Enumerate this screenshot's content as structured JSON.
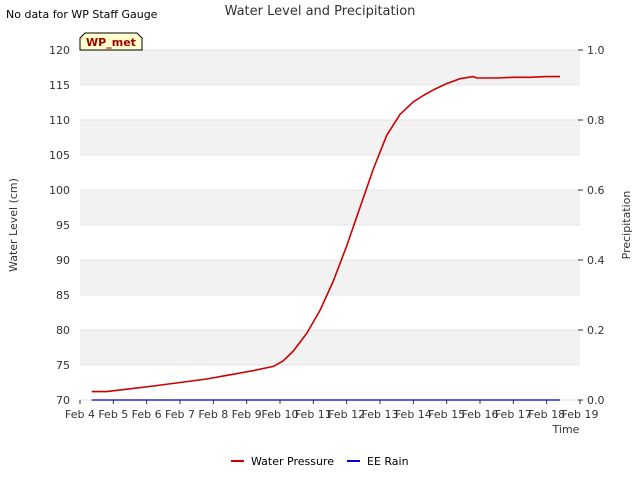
{
  "header": {
    "title": "Water Level and Precipitation",
    "no_data_note": "No data for WP Staff Gauge",
    "station_badge": "WP_met"
  },
  "chart_data": {
    "type": "line",
    "title": "Water Level and Precipitation",
    "xlabel": "Time",
    "ylabel": "Water Level (cm)",
    "y2label": "Precipitation",
    "x_ticks": [
      "Feb 4",
      "Feb 5",
      "Feb 6",
      "Feb 7",
      "Feb 8",
      "Feb 9",
      "Feb 10",
      "Feb 11",
      "Feb 12",
      "Feb 13",
      "Feb 14",
      "Feb 15",
      "Feb 16",
      "Feb 17",
      "Feb 18",
      "Feb 19"
    ],
    "xlim": [
      4,
      19
    ],
    "ylim": [
      70,
      120
    ],
    "y_ticks": [
      "70",
      "75",
      "80",
      "85",
      "90",
      "95",
      "100",
      "105",
      "110",
      "115",
      "120"
    ],
    "y2lim": [
      0,
      1
    ],
    "y2_ticks": [
      "0.0",
      "0.2",
      "0.4",
      "0.6",
      "0.8",
      "1.0"
    ],
    "grid": "horizontal alternating bands",
    "legend_position": "bottom-center",
    "series": [
      {
        "name": "Water Pressure",
        "axis": "left",
        "color": "#cc0000",
        "x": [
          4.35,
          4.8,
          5.5,
          6.2,
          7.0,
          7.8,
          8.5,
          9.2,
          9.8,
          10.1,
          10.4,
          10.8,
          11.2,
          11.6,
          12.0,
          12.4,
          12.8,
          13.2,
          13.6,
          14.0,
          14.3,
          14.6,
          15.0,
          15.4,
          15.8,
          15.9,
          16.0,
          16.5,
          17.0,
          17.5,
          18.0,
          18.4
        ],
        "y": [
          71.2,
          71.2,
          71.6,
          72.0,
          72.5,
          73.0,
          73.6,
          74.2,
          74.8,
          75.6,
          77.0,
          79.5,
          82.8,
          87.0,
          92.0,
          97.5,
          103.0,
          107.8,
          110.8,
          112.6,
          113.5,
          114.3,
          115.2,
          115.9,
          116.2,
          116.0,
          116.0,
          116.0,
          116.1,
          116.1,
          116.2,
          116.2
        ]
      },
      {
        "name": "EE Rain",
        "axis": "right",
        "color": "#0000cc",
        "x": [
          4.35,
          18.4
        ],
        "y": [
          0,
          0
        ]
      }
    ]
  }
}
